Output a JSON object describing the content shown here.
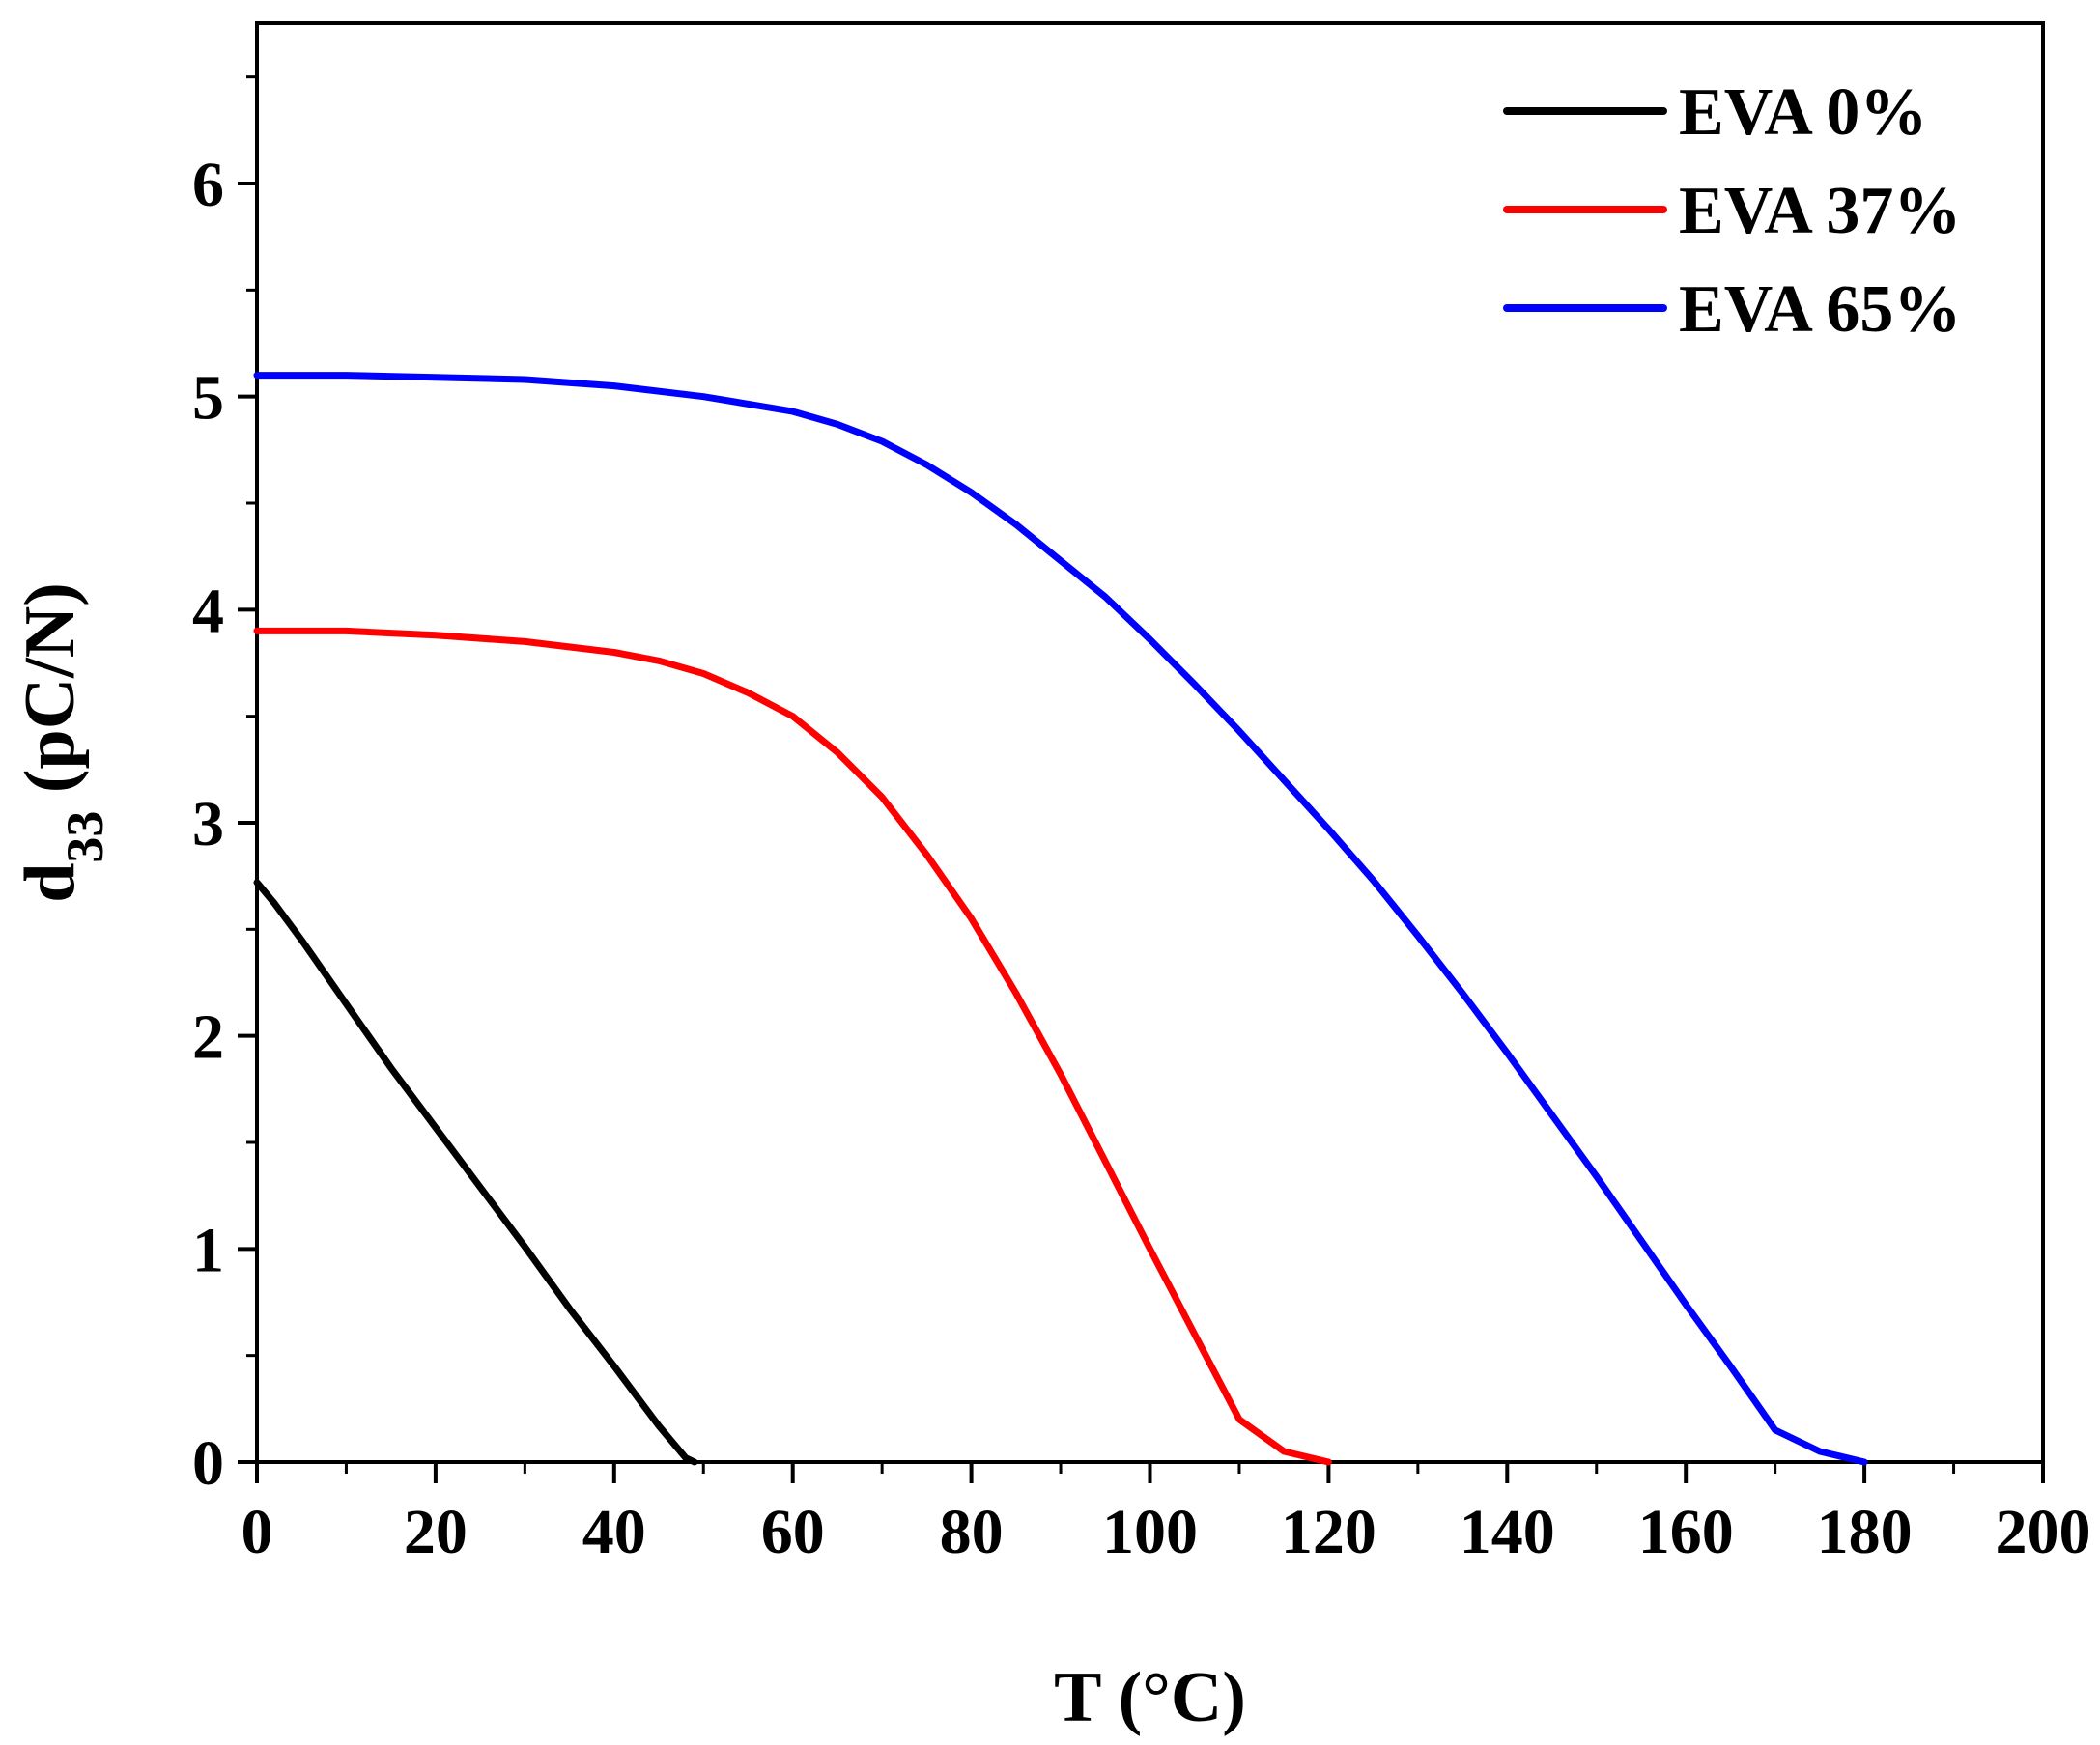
{
  "chart_data": {
    "type": "line",
    "title": "",
    "xlabel": "T (°C)",
    "ylabel": {
      "main": "d",
      "subscript": "33",
      "unit": " (pC/N)"
    },
    "xlim": [
      0,
      200
    ],
    "ylim": [
      0,
      6.6
    ],
    "x_ticks": [
      0,
      20,
      40,
      60,
      80,
      100,
      120,
      140,
      160,
      180,
      200
    ],
    "x_tick_labels": [
      "0",
      "20",
      "40",
      "60",
      "80",
      "100",
      "120",
      "140",
      "160",
      "180",
      "200"
    ],
    "y_ticks": [
      0,
      1,
      2,
      3,
      4,
      5,
      6
    ],
    "y_tick_labels": [
      "0",
      "1",
      "2",
      "3",
      "4",
      "5",
      "6"
    ],
    "grid": false,
    "legend_position": "top-right",
    "series": [
      {
        "name": "EVA 0%",
        "color": "#000000",
        "points": [
          [
            0,
            2.72
          ],
          [
            2,
            2.62
          ],
          [
            5,
            2.45
          ],
          [
            10,
            2.15
          ],
          [
            15,
            1.85
          ],
          [
            20,
            1.57
          ],
          [
            25,
            1.29
          ],
          [
            30,
            1.01
          ],
          [
            35,
            0.72
          ],
          [
            40,
            0.45
          ],
          [
            45,
            0.17
          ],
          [
            48,
            0.02
          ],
          [
            49,
            0.0
          ]
        ]
      },
      {
        "name": "EVA 37%",
        "color": "#ff0000",
        "points": [
          [
            0,
            3.9
          ],
          [
            10,
            3.9
          ],
          [
            20,
            3.88
          ],
          [
            30,
            3.85
          ],
          [
            40,
            3.8
          ],
          [
            45,
            3.76
          ],
          [
            50,
            3.7
          ],
          [
            55,
            3.61
          ],
          [
            60,
            3.5
          ],
          [
            65,
            3.33
          ],
          [
            70,
            3.12
          ],
          [
            75,
            2.85
          ],
          [
            80,
            2.55
          ],
          [
            85,
            2.2
          ],
          [
            90,
            1.82
          ],
          [
            95,
            1.41
          ],
          [
            100,
            1.0
          ],
          [
            105,
            0.6
          ],
          [
            110,
            0.2
          ],
          [
            115,
            0.05
          ],
          [
            120,
            0.0
          ]
        ]
      },
      {
        "name": "EVA 65%",
        "color": "#0000ff",
        "points": [
          [
            0,
            5.1
          ],
          [
            10,
            5.1
          ],
          [
            20,
            5.09
          ],
          [
            30,
            5.08
          ],
          [
            40,
            5.05
          ],
          [
            50,
            5.0
          ],
          [
            60,
            4.93
          ],
          [
            65,
            4.87
          ],
          [
            70,
            4.79
          ],
          [
            75,
            4.68
          ],
          [
            80,
            4.55
          ],
          [
            85,
            4.4
          ],
          [
            90,
            4.23
          ],
          [
            95,
            4.06
          ],
          [
            100,
            3.86
          ],
          [
            105,
            3.65
          ],
          [
            110,
            3.43
          ],
          [
            115,
            3.2
          ],
          [
            120,
            2.97
          ],
          [
            125,
            2.73
          ],
          [
            130,
            2.47
          ],
          [
            135,
            2.2
          ],
          [
            140,
            1.92
          ],
          [
            145,
            1.63
          ],
          [
            150,
            1.34
          ],
          [
            155,
            1.04
          ],
          [
            160,
            0.74
          ],
          [
            165,
            0.45
          ],
          [
            170,
            0.15
          ],
          [
            175,
            0.05
          ],
          [
            180,
            0.0
          ]
        ]
      }
    ]
  }
}
